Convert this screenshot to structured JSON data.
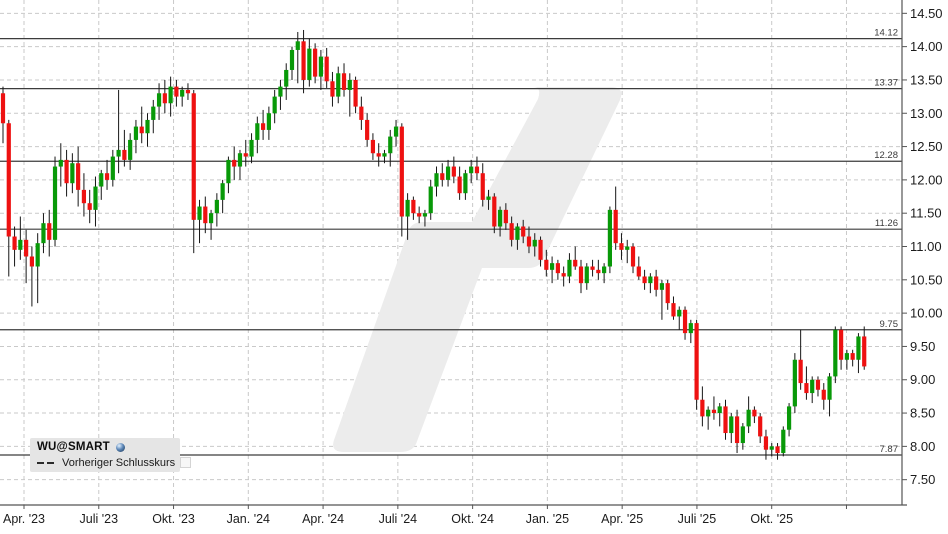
{
  "legend": {
    "symbol": "WU@SMART",
    "series_label": "Vorheriger Schlusskurs"
  },
  "chart_data": {
    "type": "candlestick",
    "title": "WU@SMART",
    "frequency_hint": "weekly",
    "x_tick_labels": [
      "Apr. '23",
      "Juli '23",
      "Okt. '23",
      "Jan. '24",
      "Apr. '24",
      "Juli '24",
      "Okt. '24",
      "Jan. '25",
      "Apr. '25",
      "Juli '25",
      "Okt. '25"
    ],
    "y_tick_labels": [
      "14.50",
      "14.00",
      "13.50",
      "13.00",
      "12.50",
      "12.00",
      "11.50",
      "11.00",
      "10.50",
      "10.00",
      "9.50",
      "9.00",
      "8.50",
      "8.00",
      "7.50"
    ],
    "ylim": [
      7.12,
      14.7
    ],
    "grid": "dashed",
    "legend_position": "bottom-left",
    "legend_entries": [
      {
        "label": "WU@SMART"
      },
      {
        "label": "Vorheriger Schlusskurs",
        "marker": "dashed-line"
      }
    ],
    "level_lines": [
      {
        "value": 14.12,
        "label": "14.12"
      },
      {
        "value": 13.37,
        "label": "13.37"
      },
      {
        "value": 12.28,
        "label": "12.28"
      },
      {
        "value": 11.26,
        "label": "11.26"
      },
      {
        "value": 9.75,
        "label": "9.75"
      },
      {
        "value": 7.87,
        "label": "7.87"
      }
    ],
    "colors": {
      "up": "#089908",
      "down": "#ee1111",
      "wick": "#161616",
      "level_line": "#3c3c3c",
      "grid": "#c9c9c9",
      "axis": "#555555",
      "text": "#1c1c1c",
      "level_text": "#3a3a3a",
      "watermark": "#ececec",
      "legend_bg": "#e5e5e5"
    },
    "candles": [
      [
        13.3,
        13.4,
        12.55,
        12.85
      ],
      [
        12.85,
        12.9,
        10.55,
        11.15
      ],
      [
        11.15,
        11.3,
        10.7,
        10.95
      ],
      [
        10.95,
        11.45,
        10.8,
        11.1
      ],
      [
        11.1,
        11.25,
        10.45,
        10.85
      ],
      [
        10.85,
        11.0,
        10.1,
        10.7
      ],
      [
        10.7,
        11.2,
        10.15,
        11.05
      ],
      [
        11.05,
        11.5,
        10.9,
        11.35
      ],
      [
        11.35,
        11.55,
        10.85,
        11.1
      ],
      [
        11.1,
        12.35,
        11.0,
        12.2
      ],
      [
        12.2,
        12.55,
        11.9,
        12.3
      ],
      [
        12.3,
        12.45,
        11.75,
        11.95
      ],
      [
        11.95,
        12.4,
        11.8,
        12.25
      ],
      [
        12.25,
        12.5,
        11.6,
        11.85
      ],
      [
        11.85,
        12.1,
        11.45,
        11.65
      ],
      [
        11.65,
        11.85,
        11.35,
        11.55
      ],
      [
        11.55,
        12.05,
        11.3,
        11.9
      ],
      [
        11.9,
        12.15,
        11.7,
        12.1
      ],
      [
        12.1,
        12.3,
        11.85,
        12.0
      ],
      [
        12.0,
        12.45,
        11.9,
        12.35
      ],
      [
        12.35,
        13.35,
        12.1,
        12.45
      ],
      [
        12.45,
        12.75,
        12.2,
        12.3
      ],
      [
        12.3,
        12.7,
        12.15,
        12.6
      ],
      [
        12.6,
        12.9,
        12.4,
        12.8
      ],
      [
        12.8,
        13.1,
        12.55,
        12.7
      ],
      [
        12.7,
        13.0,
        12.5,
        12.9
      ],
      [
        12.9,
        13.2,
        12.7,
        13.1
      ],
      [
        13.1,
        13.45,
        12.9,
        13.3
      ],
      [
        13.3,
        13.5,
        13.0,
        13.15
      ],
      [
        13.15,
        13.55,
        12.95,
        13.4
      ],
      [
        13.4,
        13.5,
        13.1,
        13.25
      ],
      [
        13.25,
        13.4,
        13.1,
        13.35
      ],
      [
        13.35,
        13.45,
        13.2,
        13.3
      ],
      [
        13.3,
        13.35,
        10.9,
        11.4
      ],
      [
        11.4,
        11.7,
        11.05,
        11.6
      ],
      [
        11.6,
        11.75,
        11.2,
        11.35
      ],
      [
        11.35,
        11.55,
        11.1,
        11.5
      ],
      [
        11.5,
        11.8,
        11.3,
        11.7
      ],
      [
        11.7,
        12.0,
        11.5,
        11.95
      ],
      [
        11.95,
        12.35,
        11.8,
        12.3
      ],
      [
        12.3,
        12.5,
        12.0,
        12.2
      ],
      [
        12.2,
        12.45,
        12.0,
        12.4
      ],
      [
        12.4,
        12.6,
        12.2,
        12.35
      ],
      [
        12.35,
        12.7,
        12.25,
        12.6
      ],
      [
        12.6,
        12.95,
        12.4,
        12.85
      ],
      [
        12.85,
        13.05,
        12.6,
        12.75
      ],
      [
        12.75,
        13.1,
        12.6,
        13.0
      ],
      [
        13.0,
        13.35,
        12.85,
        13.25
      ],
      [
        13.25,
        13.5,
        13.05,
        13.4
      ],
      [
        13.4,
        13.75,
        13.2,
        13.65
      ],
      [
        13.65,
        14.0,
        13.5,
        13.95
      ],
      [
        13.95,
        14.22,
        13.45,
        14.08
      ],
      [
        14.08,
        14.25,
        13.3,
        13.5
      ],
      [
        13.5,
        14.12,
        13.4,
        13.97
      ],
      [
        13.97,
        14.05,
        13.45,
        13.55
      ],
      [
        13.55,
        13.95,
        13.35,
        13.85
      ],
      [
        13.85,
        13.98,
        13.38,
        13.48
      ],
      [
        13.48,
        13.62,
        13.1,
        13.25
      ],
      [
        13.25,
        13.7,
        13.15,
        13.6
      ],
      [
        13.6,
        13.75,
        13.25,
        13.35
      ],
      [
        13.35,
        13.6,
        12.95,
        13.5
      ],
      [
        13.5,
        13.55,
        13.0,
        13.1
      ],
      [
        13.1,
        13.25,
        12.75,
        12.9
      ],
      [
        12.9,
        13.0,
        12.5,
        12.6
      ],
      [
        12.6,
        12.7,
        12.3,
        12.4
      ],
      [
        12.4,
        12.55,
        12.2,
        12.35
      ],
      [
        12.35,
        12.45,
        12.25,
        12.4
      ],
      [
        12.4,
        12.75,
        12.2,
        12.65
      ],
      [
        12.65,
        12.9,
        12.5,
        12.8
      ],
      [
        12.8,
        12.85,
        11.15,
        11.45
      ],
      [
        11.45,
        11.8,
        11.1,
        11.7
      ],
      [
        11.7,
        11.75,
        11.4,
        11.5
      ],
      [
        11.5,
        11.6,
        11.35,
        11.45
      ],
      [
        11.45,
        11.55,
        11.3,
        11.5
      ],
      [
        11.5,
        12.0,
        11.4,
        11.9
      ],
      [
        11.9,
        12.2,
        11.75,
        12.1
      ],
      [
        12.1,
        12.25,
        11.9,
        12.0
      ],
      [
        12.0,
        12.3,
        11.9,
        12.2
      ],
      [
        12.2,
        12.35,
        11.95,
        12.05
      ],
      [
        12.05,
        12.2,
        11.7,
        11.8
      ],
      [
        11.8,
        12.15,
        11.7,
        12.1
      ],
      [
        12.1,
        12.3,
        11.95,
        12.2
      ],
      [
        12.2,
        12.35,
        12.0,
        12.1
      ],
      [
        12.1,
        12.25,
        11.6,
        11.7
      ],
      [
        11.7,
        11.85,
        11.55,
        11.75
      ],
      [
        11.75,
        11.8,
        11.2,
        11.3
      ],
      [
        11.3,
        11.6,
        11.15,
        11.55
      ],
      [
        11.55,
        11.65,
        11.25,
        11.35
      ],
      [
        11.35,
        11.45,
        11.0,
        11.1
      ],
      [
        11.1,
        11.35,
        10.95,
        11.3
      ],
      [
        11.3,
        11.4,
        11.05,
        11.15
      ],
      [
        11.15,
        11.3,
        10.9,
        11.0
      ],
      [
        11.0,
        11.2,
        10.85,
        11.1
      ],
      [
        11.1,
        11.15,
        10.7,
        10.8
      ],
      [
        10.8,
        10.95,
        10.55,
        10.65
      ],
      [
        10.65,
        10.85,
        10.45,
        10.75
      ],
      [
        10.75,
        10.8,
        10.5,
        10.6
      ],
      [
        10.6,
        10.7,
        10.4,
        10.55
      ],
      [
        10.55,
        10.9,
        10.45,
        10.8
      ],
      [
        10.8,
        11.0,
        10.65,
        10.7
      ],
      [
        10.7,
        10.8,
        10.3,
        10.45
      ],
      [
        10.45,
        10.75,
        10.35,
        10.7
      ],
      [
        10.7,
        10.8,
        10.55,
        10.65
      ],
      [
        10.65,
        10.8,
        10.5,
        10.6
      ],
      [
        10.6,
        10.75,
        10.45,
        10.7
      ],
      [
        10.7,
        11.6,
        10.6,
        11.55
      ],
      [
        11.55,
        11.9,
        10.95,
        11.05
      ],
      [
        11.05,
        11.2,
        10.8,
        10.95
      ],
      [
        10.95,
        11.1,
        10.75,
        11.0
      ],
      [
        11.0,
        11.05,
        10.6,
        10.7
      ],
      [
        10.7,
        10.85,
        10.5,
        10.55
      ],
      [
        10.55,
        10.65,
        10.35,
        10.45
      ],
      [
        10.45,
        10.6,
        10.3,
        10.55
      ],
      [
        10.55,
        10.65,
        10.25,
        10.35
      ],
      [
        10.35,
        10.5,
        9.9,
        10.45
      ],
      [
        10.45,
        10.5,
        10.05,
        10.15
      ],
      [
        10.15,
        10.25,
        9.9,
        9.95
      ],
      [
        9.95,
        10.1,
        9.75,
        10.05
      ],
      [
        10.05,
        10.1,
        9.6,
        9.7
      ],
      [
        9.7,
        9.9,
        9.55,
        9.85
      ],
      [
        9.85,
        9.9,
        8.55,
        8.7
      ],
      [
        8.7,
        8.9,
        8.3,
        8.45
      ],
      [
        8.45,
        8.6,
        8.25,
        8.55
      ],
      [
        8.55,
        8.75,
        8.4,
        8.5
      ],
      [
        8.5,
        8.65,
        8.3,
        8.6
      ],
      [
        8.6,
        8.7,
        8.1,
        8.2
      ],
      [
        8.2,
        8.5,
        8.05,
        8.45
      ],
      [
        8.45,
        8.55,
        7.9,
        8.05
      ],
      [
        8.05,
        8.35,
        7.95,
        8.3
      ],
      [
        8.3,
        8.75,
        8.2,
        8.55
      ],
      [
        8.55,
        8.6,
        8.35,
        8.45
      ],
      [
        8.45,
        8.5,
        8.05,
        8.15
      ],
      [
        8.15,
        8.25,
        7.8,
        7.95
      ],
      [
        7.95,
        8.05,
        7.85,
        8.0
      ],
      [
        8.0,
        8.05,
        7.8,
        7.9
      ],
      [
        7.9,
        8.3,
        7.85,
        8.25
      ],
      [
        8.25,
        8.65,
        8.15,
        8.6
      ],
      [
        8.6,
        9.4,
        8.5,
        9.3
      ],
      [
        9.3,
        9.75,
        8.85,
        8.95
      ],
      [
        8.95,
        9.2,
        8.7,
        8.8
      ],
      [
        8.8,
        9.05,
        8.65,
        9.0
      ],
      [
        9.0,
        9.05,
        8.75,
        8.85
      ],
      [
        8.85,
        8.95,
        8.55,
        8.7
      ],
      [
        8.7,
        9.1,
        8.45,
        9.05
      ],
      [
        9.05,
        9.8,
        8.95,
        9.75
      ],
      [
        9.75,
        9.8,
        9.15,
        9.3
      ],
      [
        9.3,
        9.45,
        9.15,
        9.4
      ],
      [
        9.4,
        9.45,
        9.2,
        9.3
      ],
      [
        9.3,
        9.7,
        9.1,
        9.65
      ],
      [
        9.65,
        9.8,
        9.15,
        9.2
      ]
    ]
  }
}
